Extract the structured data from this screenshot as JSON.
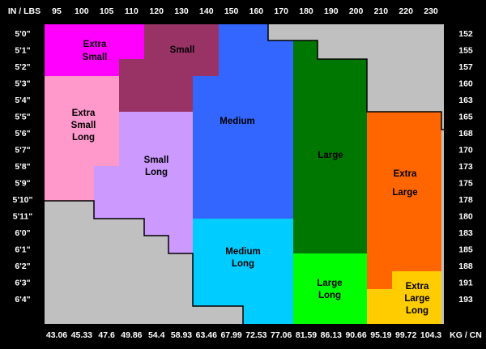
{
  "header": {
    "corner": "IN  /  LBS",
    "right_unit": "KG / CN"
  },
  "lbs": [
    "95",
    "100",
    "105",
    "110",
    "120",
    "130",
    "140",
    "150",
    "160",
    "170",
    "180",
    "190",
    "200",
    "210",
    "220",
    "230"
  ],
  "heights": [
    "5'0\"",
    "5'1\"",
    "5'2\"",
    "5'3\"",
    "5'4\"",
    "5'5\"",
    "5'6\"",
    "5'7\"",
    "5'8\"",
    "5'9\"",
    "5'10\"",
    "5'11\"",
    "6'0\"",
    "6'1\"",
    "6'2\"",
    "6'3\"",
    "6'4\""
  ],
  "cm": [
    "152",
    "155",
    "157",
    "160",
    "163",
    "165",
    "168",
    "170",
    "173",
    "175",
    "178",
    "180",
    "183",
    "185",
    "188",
    "191",
    "193"
  ],
  "kg": [
    "43.06",
    "45.33",
    "47.6",
    "49.86",
    "54.4",
    "58.93",
    "63.46",
    "67.99",
    "72.53",
    "77.06",
    "81.59",
    "86.13",
    "90.66",
    "95.19",
    "99.72",
    "104.3"
  ],
  "regions": [
    {
      "lines": [
        "Extra",
        "Small"
      ]
    },
    {
      "lines": [
        "Small"
      ]
    },
    {
      "lines": [
        "Extra",
        "Small",
        "Long"
      ]
    },
    {
      "lines": [
        "Small",
        "Long"
      ]
    },
    {
      "lines": [
        "Medium"
      ]
    },
    {
      "lines": [
        "Large"
      ]
    },
    {
      "lines": [
        "Extra",
        "Large"
      ]
    },
    {
      "lines": [
        "Medium",
        "Long"
      ]
    },
    {
      "lines": [
        "Large",
        "Long"
      ]
    },
    {
      "lines": [
        "Extra",
        "Large",
        "Long"
      ]
    }
  ]
}
